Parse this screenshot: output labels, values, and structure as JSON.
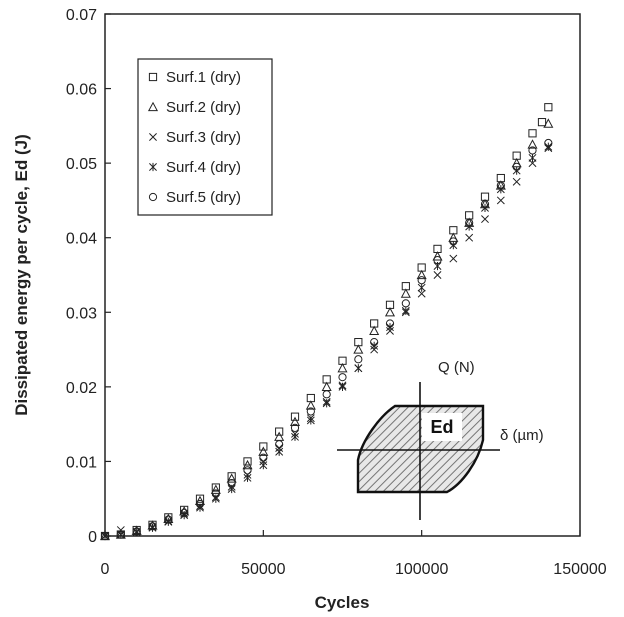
{
  "chart_data": {
    "type": "scatter",
    "xlabel": "Cycles",
    "ylabel": "Dissipated energy per cycle, Ed (J)",
    "xlim": [
      0,
      150000
    ],
    "ylim": [
      0,
      0.07
    ],
    "x_ticks": [
      "0",
      "50000",
      "100000",
      "150000"
    ],
    "y_ticks": [
      "0",
      "0.01",
      "0.02",
      "0.03",
      "0.04",
      "0.05",
      "0.06",
      "0.07"
    ],
    "x_tick_values": [
      0,
      50000,
      100000,
      150000
    ],
    "y_tick_values": [
      0,
      0.01,
      0.02,
      0.03,
      0.04,
      0.05,
      0.06,
      0.07
    ],
    "grid": false,
    "legend_position": "top-left",
    "series": [
      {
        "name": "Surf.1 (dry)",
        "marker": "square",
        "points": [
          [
            0,
            0
          ],
          [
            5000,
            0.0002
          ],
          [
            10000,
            0.0008
          ],
          [
            15000,
            0.0015
          ],
          [
            20000,
            0.0025
          ],
          [
            25000,
            0.0035
          ],
          [
            30000,
            0.005
          ],
          [
            35000,
            0.0065
          ],
          [
            40000,
            0.008
          ],
          [
            45000,
            0.01
          ],
          [
            50000,
            0.012
          ],
          [
            55000,
            0.014
          ],
          [
            60000,
            0.016
          ],
          [
            65000,
            0.0185
          ],
          [
            70000,
            0.021
          ],
          [
            75000,
            0.0235
          ],
          [
            80000,
            0.026
          ],
          [
            85000,
            0.0285
          ],
          [
            90000,
            0.031
          ],
          [
            95000,
            0.0335
          ],
          [
            100000,
            0.036
          ],
          [
            105000,
            0.0385
          ],
          [
            110000,
            0.041
          ],
          [
            115000,
            0.043
          ],
          [
            120000,
            0.0455
          ],
          [
            125000,
            0.048
          ],
          [
            130000,
            0.051
          ],
          [
            135000,
            0.054
          ],
          [
            138000,
            0.0555
          ],
          [
            140000,
            0.0575
          ]
        ]
      },
      {
        "name": "Surf.2 (dry)",
        "marker": "triangle",
        "points": [
          [
            0,
            0
          ],
          [
            5000,
            0.0002
          ],
          [
            10000,
            0.0007
          ],
          [
            15000,
            0.0014
          ],
          [
            20000,
            0.0023
          ],
          [
            25000,
            0.0033
          ],
          [
            30000,
            0.0047
          ],
          [
            35000,
            0.0062
          ],
          [
            40000,
            0.0077
          ],
          [
            45000,
            0.0095
          ],
          [
            50000,
            0.0113
          ],
          [
            55000,
            0.0133
          ],
          [
            60000,
            0.0153
          ],
          [
            65000,
            0.0175
          ],
          [
            70000,
            0.02
          ],
          [
            75000,
            0.0225
          ],
          [
            80000,
            0.025
          ],
          [
            85000,
            0.0275
          ],
          [
            90000,
            0.03
          ],
          [
            95000,
            0.0325
          ],
          [
            100000,
            0.035
          ],
          [
            105000,
            0.0375
          ],
          [
            110000,
            0.04
          ],
          [
            115000,
            0.042
          ],
          [
            120000,
            0.0445
          ],
          [
            125000,
            0.047
          ],
          [
            130000,
            0.05
          ],
          [
            135000,
            0.0525
          ],
          [
            140000,
            0.0553
          ]
        ]
      },
      {
        "name": "Surf.3 (dry)",
        "marker": "x",
        "points": [
          [
            0,
            0
          ],
          [
            5000,
            0.0008
          ],
          [
            10000,
            0.0006
          ],
          [
            15000,
            0.0012
          ],
          [
            20000,
            0.002
          ],
          [
            25000,
            0.003
          ],
          [
            30000,
            0.004
          ],
          [
            35000,
            0.0052
          ],
          [
            40000,
            0.0066
          ],
          [
            45000,
            0.0082
          ],
          [
            50000,
            0.01
          ],
          [
            55000,
            0.0118
          ],
          [
            60000,
            0.0137
          ],
          [
            65000,
            0.0158
          ],
          [
            70000,
            0.018
          ],
          [
            75000,
            0.0202
          ],
          [
            80000,
            0.0225
          ],
          [
            85000,
            0.025
          ],
          [
            90000,
            0.0275
          ],
          [
            95000,
            0.03
          ],
          [
            100000,
            0.0325
          ],
          [
            105000,
            0.035
          ],
          [
            110000,
            0.0372
          ],
          [
            115000,
            0.04
          ],
          [
            120000,
            0.0425
          ],
          [
            125000,
            0.045
          ],
          [
            130000,
            0.0475
          ],
          [
            135000,
            0.05
          ],
          [
            140000,
            0.052
          ]
        ]
      },
      {
        "name": "Surf.4 (dry)",
        "marker": "star",
        "points": [
          [
            0,
            0
          ],
          [
            5000,
            0.0002
          ],
          [
            10000,
            0.0005
          ],
          [
            15000,
            0.0011
          ],
          [
            20000,
            0.0019
          ],
          [
            25000,
            0.0028
          ],
          [
            30000,
            0.0038
          ],
          [
            35000,
            0.005
          ],
          [
            40000,
            0.0063
          ],
          [
            45000,
            0.0078
          ],
          [
            50000,
            0.0095
          ],
          [
            55000,
            0.0113
          ],
          [
            60000,
            0.0133
          ],
          [
            65000,
            0.0155
          ],
          [
            70000,
            0.0178
          ],
          [
            75000,
            0.02
          ],
          [
            80000,
            0.0225
          ],
          [
            85000,
            0.0255
          ],
          [
            90000,
            0.028
          ],
          [
            95000,
            0.0302
          ],
          [
            100000,
            0.0333
          ],
          [
            105000,
            0.0362
          ],
          [
            110000,
            0.039
          ],
          [
            115000,
            0.0415
          ],
          [
            120000,
            0.044
          ],
          [
            125000,
            0.0465
          ],
          [
            130000,
            0.049
          ],
          [
            135000,
            0.0507
          ],
          [
            140000,
            0.0522
          ]
        ]
      },
      {
        "name": "Surf.5 (dry)",
        "marker": "circle",
        "points": [
          [
            0,
            0
          ],
          [
            5000,
            0.0002
          ],
          [
            10000,
            0.0006
          ],
          [
            15000,
            0.0013
          ],
          [
            20000,
            0.0022
          ],
          [
            25000,
            0.0031
          ],
          [
            30000,
            0.0043
          ],
          [
            35000,
            0.0057
          ],
          [
            40000,
            0.0071
          ],
          [
            45000,
            0.0088
          ],
          [
            50000,
            0.0105
          ],
          [
            55000,
            0.0123
          ],
          [
            60000,
            0.0145
          ],
          [
            65000,
            0.0167
          ],
          [
            70000,
            0.019
          ],
          [
            75000,
            0.0213
          ],
          [
            80000,
            0.0237
          ],
          [
            85000,
            0.026
          ],
          [
            90000,
            0.0285
          ],
          [
            95000,
            0.0312
          ],
          [
            100000,
            0.0343
          ],
          [
            105000,
            0.037
          ],
          [
            110000,
            0.0395
          ],
          [
            115000,
            0.042
          ],
          [
            120000,
            0.0445
          ],
          [
            125000,
            0.047
          ],
          [
            130000,
            0.0495
          ],
          [
            135000,
            0.0517
          ],
          [
            140000,
            0.0527
          ]
        ]
      }
    ],
    "inset": {
      "label_q": "Q (N)",
      "label_delta": "δ (µm)",
      "label_ed": "Ed"
    }
  }
}
